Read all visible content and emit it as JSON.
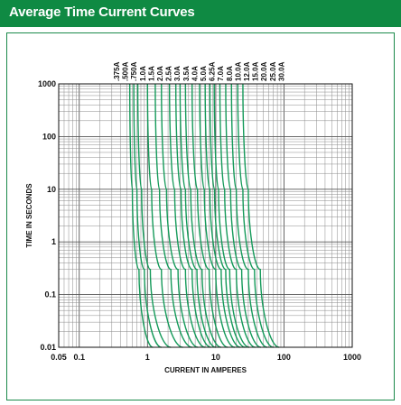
{
  "header": {
    "title": "Average Time Current Curves"
  },
  "chart_data": {
    "type": "line",
    "title": "",
    "xlabel": "CURRENT IN AMPERES",
    "ylabel": "TIME IN SECONDS",
    "xscale": "log",
    "yscale": "log",
    "xlim": [
      0.05,
      1000
    ],
    "ylim": [
      0.01,
      1000
    ],
    "grid": true,
    "x_ticks": [
      {
        "value": 0.05,
        "label": "0.05"
      },
      {
        "value": 0.1,
        "label": "0.1"
      },
      {
        "value": 1,
        "label": "1"
      },
      {
        "value": 10,
        "label": "10"
      },
      {
        "value": 100,
        "label": "100"
      },
      {
        "value": 1000,
        "label": "1000"
      }
    ],
    "y_ticks": [
      {
        "value": 0.01,
        "label": "0.01"
      },
      {
        "value": 0.1,
        "label": "0.1"
      },
      {
        "value": 1,
        "label": "1"
      },
      {
        "value": 10,
        "label": "10"
      },
      {
        "value": 100,
        "label": "100"
      },
      {
        "value": 1000,
        "label": "1000"
      }
    ],
    "curve_color": "#159a5a",
    "series": [
      {
        "name": ".375A",
        "x": [
          0.55,
          0.6,
          0.75,
          1.2
        ],
        "y": [
          1000,
          10,
          0.3,
          0.01
        ]
      },
      {
        "name": ".500A",
        "x": [
          0.63,
          0.7,
          0.9,
          1.6
        ],
        "y": [
          1000,
          10,
          0.3,
          0.01
        ]
      },
      {
        "name": ".750A",
        "x": [
          0.72,
          0.82,
          1.1,
          2.2
        ],
        "y": [
          1000,
          10,
          0.3,
          0.01
        ]
      },
      {
        "name": "1.0A",
        "x": [
          1.0,
          1.15,
          1.6,
          3.3
        ],
        "y": [
          1000,
          10,
          0.3,
          0.01
        ]
      },
      {
        "name": "1.5A",
        "x": [
          1.3,
          1.5,
          2.2,
          4.5
        ],
        "y": [
          1000,
          10,
          0.3,
          0.01
        ]
      },
      {
        "name": "2.0A",
        "x": [
          1.6,
          1.9,
          2.8,
          5.5
        ],
        "y": [
          1000,
          10,
          0.3,
          0.01
        ]
      },
      {
        "name": "2.5A",
        "x": [
          2.1,
          2.5,
          3.6,
          7.0
        ],
        "y": [
          1000,
          10,
          0.3,
          0.01
        ]
      },
      {
        "name": "3.0A",
        "x": [
          2.6,
          3.1,
          4.5,
          8.5
        ],
        "y": [
          1000,
          10,
          0.3,
          0.01
        ]
      },
      {
        "name": "3.5A",
        "x": [
          3.0,
          3.6,
          5.3,
          10
        ],
        "y": [
          1000,
          10,
          0.3,
          0.01
        ]
      },
      {
        "name": "4.0A",
        "x": [
          3.6,
          4.3,
          6.3,
          12
        ],
        "y": [
          1000,
          10,
          0.3,
          0.01
        ]
      },
      {
        "name": "5.0A",
        "x": [
          4.5,
          5.4,
          8.0,
          15
        ],
        "y": [
          1000,
          10,
          0.3,
          0.01
        ]
      },
      {
        "name": "6.25A",
        "x": [
          5.8,
          6.8,
          10,
          19
        ],
        "y": [
          1000,
          10,
          0.3,
          0.01
        ]
      },
      {
        "name": "7.0A",
        "x": [
          7.0,
          8.2,
          12,
          23
        ],
        "y": [
          1000,
          10,
          0.3,
          0.01
        ]
      },
      {
        "name": "8.0A",
        "x": [
          8.2,
          9.6,
          14,
          27
        ],
        "y": [
          1000,
          10,
          0.3,
          0.01
        ]
      },
      {
        "name": "10.0A",
        "x": [
          9.5,
          11,
          16,
          31
        ],
        "y": [
          1000,
          10,
          0.3,
          0.01
        ]
      },
      {
        "name": "12.0A",
        "x": [
          11.5,
          13.5,
          20,
          38
        ],
        "y": [
          1000,
          10,
          0.3,
          0.01
        ]
      },
      {
        "name": "15.0A",
        "x": [
          14,
          16.5,
          24,
          46
        ],
        "y": [
          1000,
          10,
          0.3,
          0.01
        ]
      },
      {
        "name": "20.0A",
        "x": [
          17,
          20,
          30,
          57
        ],
        "y": [
          1000,
          10,
          0.3,
          0.01
        ]
      },
      {
        "name": "25.0A",
        "x": [
          21,
          25,
          37,
          70
        ],
        "y": [
          1000,
          10,
          0.3,
          0.01
        ]
      },
      {
        "name": "30.0A",
        "x": [
          25,
          30,
          45,
          85
        ],
        "y": [
          1000,
          10,
          0.3,
          0.01
        ]
      }
    ]
  }
}
